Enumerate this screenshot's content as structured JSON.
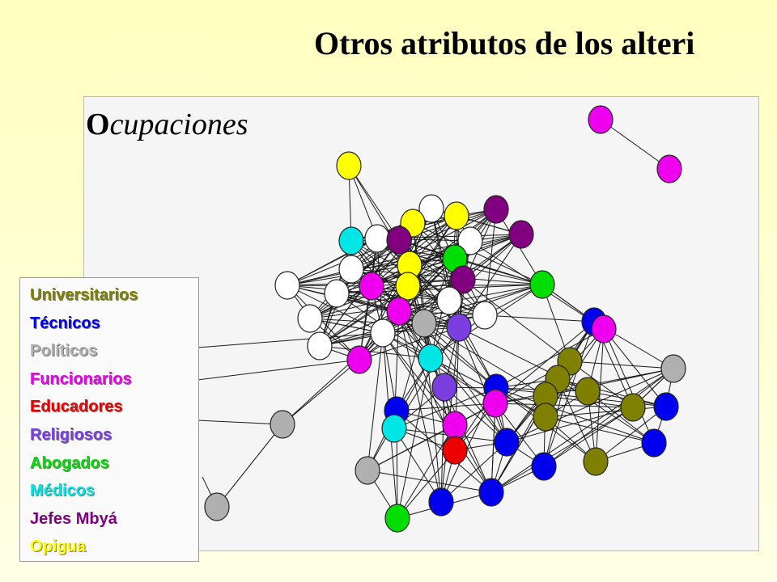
{
  "title": "Otros atributos de los alteri",
  "panel": {
    "title_initial": "O",
    "title_rest": "cupaciones"
  },
  "colors": {
    "universitarios": "#808000",
    "tecnicos": "#0000ee",
    "politicos": "#b0b0b0",
    "funcionarios": "#ee00ee",
    "educadores": "#ee0000",
    "religiosos": "#7b3fe0",
    "abogados": "#00dd00",
    "medicos": "#00e6e6",
    "jefes": "#800080",
    "opigua": "#ffff00",
    "none": "#ffffff"
  },
  "legend": [
    {
      "label": "Universitarios",
      "key": "universitarios",
      "shadow": true
    },
    {
      "label": "Técnicos",
      "key": "tecnicos",
      "shadow": true
    },
    {
      "label": "Políticos",
      "key": "politicos",
      "shadow": true
    },
    {
      "label": "Funcionarios",
      "key": "funcionarios",
      "shadow": true
    },
    {
      "label": "Educadores",
      "key": "educadores",
      "shadow": true
    },
    {
      "label": "Religiosos",
      "key": "religiosos",
      "shadow": true
    },
    {
      "label": "Abogados",
      "key": "abogados",
      "shadow": true
    },
    {
      "label": "Médicos",
      "key": "medicos",
      "shadow": true
    },
    {
      "label": "Jefes Mbyá",
      "key": "jefes",
      "shadow": false
    },
    {
      "label": "Opigua",
      "key": "opigua",
      "shadow": true
    }
  ]
}
